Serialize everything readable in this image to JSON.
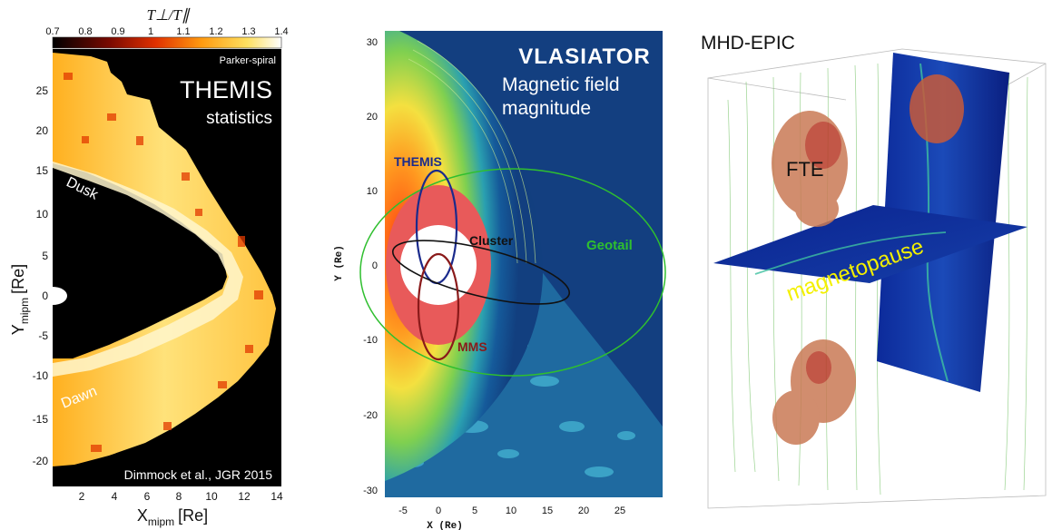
{
  "panel_a": {
    "colorbar_label": "T⊥/T∥",
    "colorbar_ticks": [
      "0.7",
      "0.8",
      "0.9",
      "1",
      "1.1",
      "1.2",
      "1.3",
      "1.4"
    ],
    "tag": "Parker-spiral",
    "title": "THEMIS",
    "subtitle": "statistics",
    "label_dusk": "Dusk",
    "label_dawn": "Dawn",
    "citation": "Dimmock et al., JGR 2015",
    "y_ticks": [
      "25",
      "20",
      "15",
      "10",
      "5",
      "0",
      "-5",
      "-10",
      "-15",
      "-20"
    ],
    "x_ticks": [
      "2",
      "4",
      "6",
      "8",
      "10",
      "12",
      "14"
    ],
    "ylabel_main": "Y",
    "ylabel_sub": "mipm",
    "ylabel_unit": "[Re]",
    "xlabel_main": "X",
    "xlabel_sub": "mipm",
    "xlabel_unit": "[Re]"
  },
  "panel_b": {
    "logo": "VLASIATOR",
    "title_line1": "Magnetic field",
    "title_line2": "magnitude",
    "label_themis": "THEMIS",
    "label_cluster": "Cluster",
    "label_geotail": "Geotail",
    "label_mms": "MMS",
    "y_ticks": [
      "30",
      "20",
      "10",
      "0",
      "-10",
      "-20",
      "-30"
    ],
    "x_ticks": [
      "-5",
      "0",
      "5",
      "10",
      "15",
      "20",
      "25"
    ],
    "ylabel": "Y (Re)",
    "xlabel": "X (Re)",
    "colors": {
      "themis": "#1a2a8c",
      "cluster": "#111111",
      "geotail": "#2fbf2f",
      "mms": "#8a1a1a"
    }
  },
  "panel_c": {
    "title": "MHD-EPIC",
    "label_fte": "FTE",
    "label_magnetopause": "magnetopause"
  }
}
